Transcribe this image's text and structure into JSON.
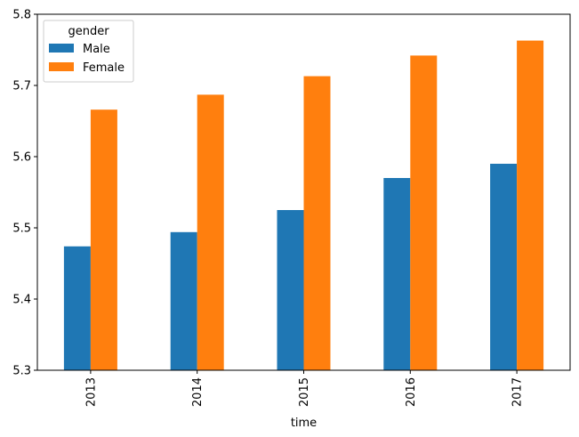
{
  "chart_data": {
    "type": "bar",
    "categories": [
      "2013",
      "2014",
      "2015",
      "2016",
      "2017"
    ],
    "series": [
      {
        "name": "Male",
        "values": [
          5.474,
          5.494,
          5.525,
          5.57,
          5.59
        ],
        "color": "#1f77b4"
      },
      {
        "name": "Female",
        "values": [
          5.666,
          5.687,
          5.713,
          5.742,
          5.763
        ],
        "color": "#ff7f0e"
      }
    ],
    "title": "",
    "xlabel": "time",
    "ylabel": "",
    "ylim": [
      5.3,
      5.8
    ],
    "yticks": [
      "5.3",
      "5.4",
      "5.5",
      "5.6",
      "5.7",
      "5.8"
    ],
    "grid": false,
    "legend": {
      "title": "gender",
      "position": "top-left"
    }
  }
}
